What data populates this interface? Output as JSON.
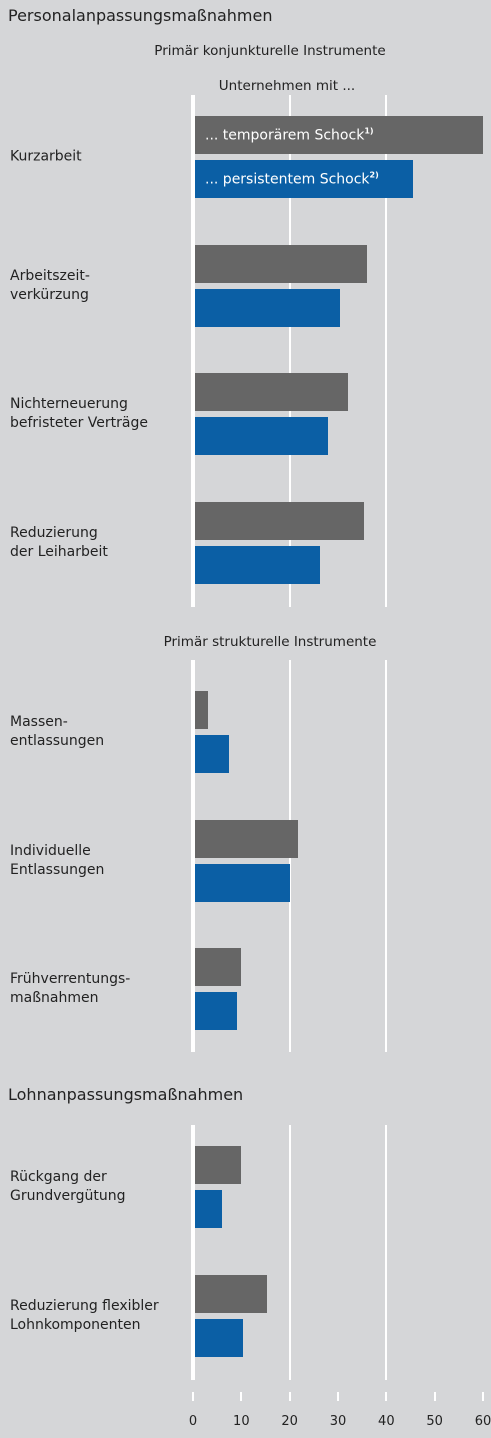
{
  "chart_data": [
    {
      "type": "bar",
      "orientation": "horizontal",
      "title": "Personalanpassungsmaßnahmen",
      "subtitle": "Primär konjunkturelle Instrumente",
      "legend_title": "Unternehmen mit ...",
      "categories": [
        "Kurzarbeit",
        "Arbeitszeit-\nverkürzung",
        "Nichterneuerung\nbefristeter Verträge",
        "Reduzierung\nder Leiharbeit"
      ],
      "series": [
        {
          "name": "... temporärem Schock",
          "note": "1)",
          "color": "#666666",
          "values": [
            60,
            36,
            32,
            35.4
          ]
        },
        {
          "name": "... persistentem Schock",
          "note": "2)",
          "color": "#0b5fa5",
          "values": [
            45.5,
            30.5,
            28,
            26.3
          ]
        }
      ],
      "xlim": [
        0,
        60
      ]
    },
    {
      "type": "bar",
      "orientation": "horizontal",
      "subtitle": "Primär strukturelle Instrumente",
      "categories": [
        "Massen-\nentlassungen",
        "Individuelle\nEntlassungen",
        "Frühverrentungs-\nmaßnahmen"
      ],
      "series": [
        {
          "color": "#666666",
          "values": [
            3,
            21.7,
            10
          ]
        },
        {
          "color": "#0b5fa5",
          "values": [
            7.5,
            20,
            9
          ]
        }
      ],
      "xlim": [
        0,
        60
      ]
    },
    {
      "type": "bar",
      "orientation": "horizontal",
      "title": "Lohnanpassungsmaßnahmen",
      "categories": [
        "Rückgang der\nGrundvergütung",
        "Reduzierung flexibler\nLohnkomponenten"
      ],
      "series": [
        {
          "color": "#666666",
          "values": [
            10,
            15.3
          ]
        },
        {
          "color": "#0b5fa5",
          "values": [
            6,
            10.4
          ]
        }
      ],
      "xlim": [
        0,
        60
      ],
      "xticks": [
        0,
        10,
        20,
        30,
        40,
        50,
        60
      ]
    }
  ]
}
